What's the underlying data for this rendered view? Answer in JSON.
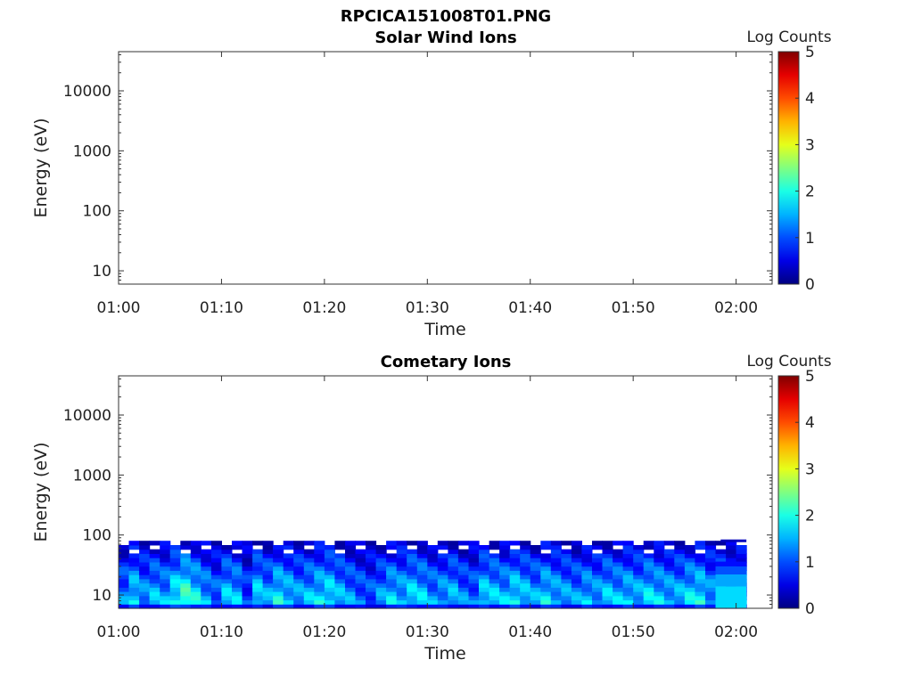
{
  "figure_title": "RPCICA151008T01.PNG",
  "chart_data": [
    {
      "type": "heatmap",
      "title": "Solar Wind Ions",
      "xlabel": "Time",
      "ylabel": "Energy (eV)",
      "y_scale": "log",
      "ylim": [
        6,
        45000
      ],
      "x_ticks": [
        "01:00",
        "01:10",
        "01:20",
        "01:30",
        "01:40",
        "01:50",
        "02:00"
      ],
      "xlim_minutes": [
        0,
        63.5
      ],
      "y_ticks": [
        {
          "value": 10,
          "label": "10"
        },
        {
          "value": 100,
          "label": "100"
        },
        {
          "value": 1000,
          "label": "1000"
        },
        {
          "value": 10000,
          "label": "10000"
        }
      ],
      "colorbar": {
        "label": "Log Counts",
        "min": 0,
        "max": 5,
        "ticks": [
          "0",
          "1",
          "2",
          "3",
          "4",
          "5"
        ],
        "colormap": "jet"
      },
      "data": "no counts shown (empty panel)"
    },
    {
      "type": "heatmap",
      "title": "Cometary Ions",
      "xlabel": "Time",
      "ylabel": "Energy (eV)",
      "y_scale": "log",
      "ylim": [
        6,
        45000
      ],
      "x_ticks": [
        "01:00",
        "01:10",
        "01:20",
        "01:30",
        "01:40",
        "01:50",
        "02:00"
      ],
      "xlim_minutes": [
        0,
        63.5
      ],
      "y_ticks": [
        {
          "value": 10,
          "label": "10"
        },
        {
          "value": 100,
          "label": "100"
        },
        {
          "value": 1000,
          "label": "1000"
        },
        {
          "value": 10000,
          "label": "10000"
        }
      ],
      "colorbar": {
        "label": "Log Counts",
        "min": 0,
        "max": 5,
        "ticks": [
          "0",
          "1",
          "2",
          "3",
          "4",
          "5"
        ],
        "colormap": "jet"
      },
      "data_extent": {
        "time_minutes": [
          0,
          61
        ],
        "energy_eV": [
          6,
          80
        ]
      },
      "approx_log_counts_by_minute": [
        1.3,
        1.8,
        1.4,
        1.6,
        1.5,
        2.0,
        2.3,
        1.9,
        1.5,
        1.2,
        1.7,
        1.6,
        1.0,
        1.8,
        1.5,
        1.9,
        1.7,
        1.5,
        1.6,
        1.8,
        1.9,
        1.6,
        1.4,
        1.2,
        1.1,
        1.4,
        1.7,
        1.6,
        1.8,
        1.7,
        1.4,
        1.5,
        1.6,
        1.3,
        1.2,
        1.8,
        1.7,
        1.6,
        1.9,
        1.7,
        1.5,
        1.8,
        1.6,
        1.5,
        1.4,
        1.6,
        1.5,
        1.7,
        1.6,
        1.7,
        1.6,
        1.8,
        1.7,
        1.6,
        1.6,
        1.8,
        1.9,
        1.5,
        1.4,
        1.5,
        1.5
      ],
      "late_band_log_counts": 1.7
    }
  ]
}
